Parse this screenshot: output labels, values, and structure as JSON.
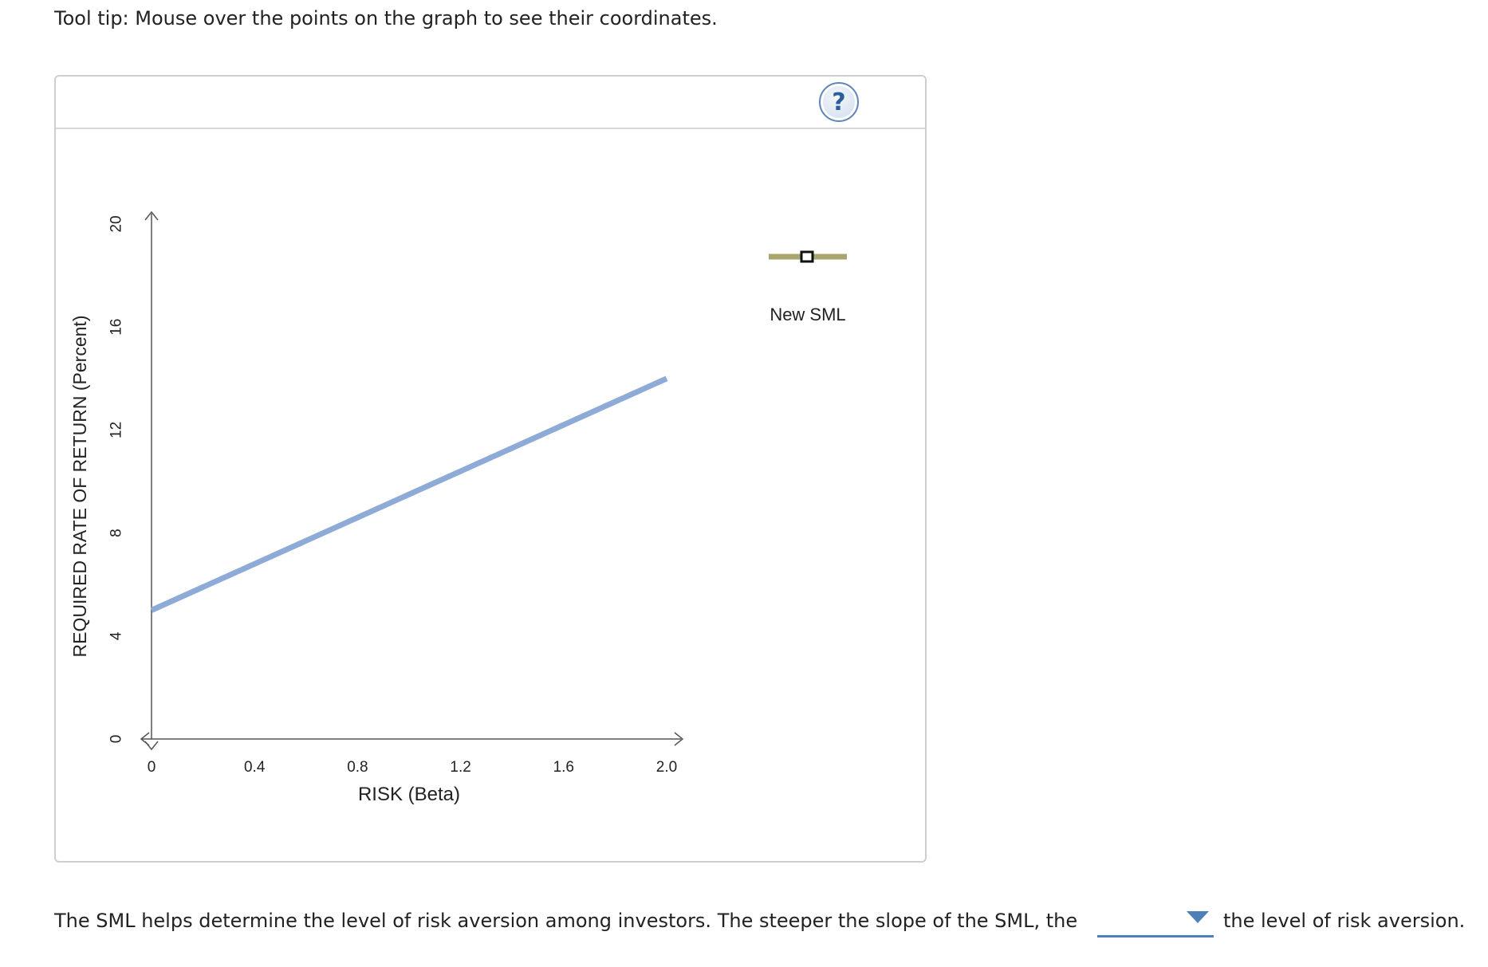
{
  "instructions": {
    "tooltip_text": "Tool tip: Mouse over the points on the graph to see their coordinates."
  },
  "help_button": {
    "label": "?"
  },
  "chart_data": {
    "type": "line",
    "title": "",
    "xlabel": "RISK (Beta)",
    "ylabel": "REQUIRED RATE OF RETURN (Percent)",
    "xlim": [
      0,
      2.0
    ],
    "ylim": [
      0,
      20
    ],
    "x_ticks": [
      0,
      0.4,
      0.8,
      1.2,
      1.6,
      2.0
    ],
    "x_tick_labels": [
      "0",
      "0.4",
      "0.8",
      "1.2",
      "1.6",
      "2.0"
    ],
    "y_ticks": [
      0,
      4,
      8,
      12,
      16,
      20
    ],
    "y_tick_labels": [
      "0",
      "4",
      "8",
      "12",
      "16",
      "20"
    ],
    "grid": false,
    "legend": {
      "placement": "right"
    },
    "legend_items": [
      {
        "label": "New SML",
        "color": "#a8a66e",
        "marker": "square"
      }
    ],
    "series": [
      {
        "x": [
          0,
          2.0
        ],
        "y": [
          5,
          14
        ],
        "color": "#8eaad6"
      }
    ]
  },
  "question": {
    "text_before": "The SML helps determine the level of risk aversion among investors. The steeper the slope of the SML, the",
    "answer_value": "",
    "text_after": "the level of risk aversion."
  },
  "colors": {
    "axis": "#555555",
    "sml_line": "#8eaad6",
    "legend_tool": "#a8a66e",
    "dropdown_accent": "#4f7fb9"
  }
}
